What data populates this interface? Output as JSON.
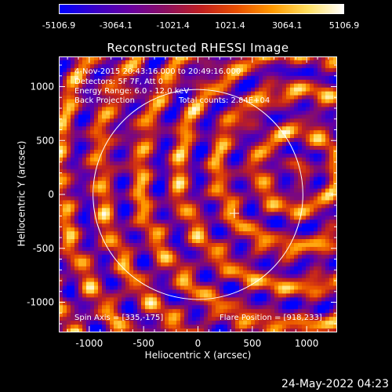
{
  "colorbar": {
    "ticks": [
      "-5106.9",
      "-3064.1",
      "-1021.4",
      "1021.4",
      "3064.1",
      "5106.9"
    ],
    "colors": [
      "#0000ff",
      "#3a00c8",
      "#6a00a0",
      "#8c1060",
      "#c02020",
      "#e85000",
      "#ff9a00",
      "#ffe060",
      "#ffffff"
    ]
  },
  "chart_data": {
    "type": "heatmap",
    "title": "Reconstructed RHESSI Image",
    "xlabel": "Heliocentric X (arcsec)",
    "ylabel": "Heliocentric Y (arcsec)",
    "xlim": [
      -1280,
      1280
    ],
    "ylim": [
      -1280,
      1280
    ],
    "xticks": [
      "-1000",
      "-500",
      "0",
      "500",
      "1000"
    ],
    "yticks": [
      "1000",
      "500",
      "0",
      "-500",
      "-1000"
    ],
    "xtick_values": [
      -1000,
      -500,
      0,
      500,
      1000
    ],
    "ytick_values": [
      1000,
      500,
      0,
      -500,
      -1000
    ],
    "value_range": [
      -5106.9,
      5106.9
    ],
    "solar_disk_radius_arcsec": 965,
    "flare_marker": [
      335,
      -175
    ],
    "annotations": {
      "time": "4-Nov-2015 20:43:16.000 to 20:49:16.000",
      "detectors": "Detectors: 5F 7F, Att 0",
      "energy": "Energy Range: 6.0 - 12.0 keV",
      "method": "Back Projection",
      "counts": "Total counts: 2.84E+04",
      "spin_axis": "Spin Axis = [335,-175]",
      "flare_position": "Flare Position = [918,233]"
    }
  },
  "timestamp": "24-May-2022 04:23"
}
